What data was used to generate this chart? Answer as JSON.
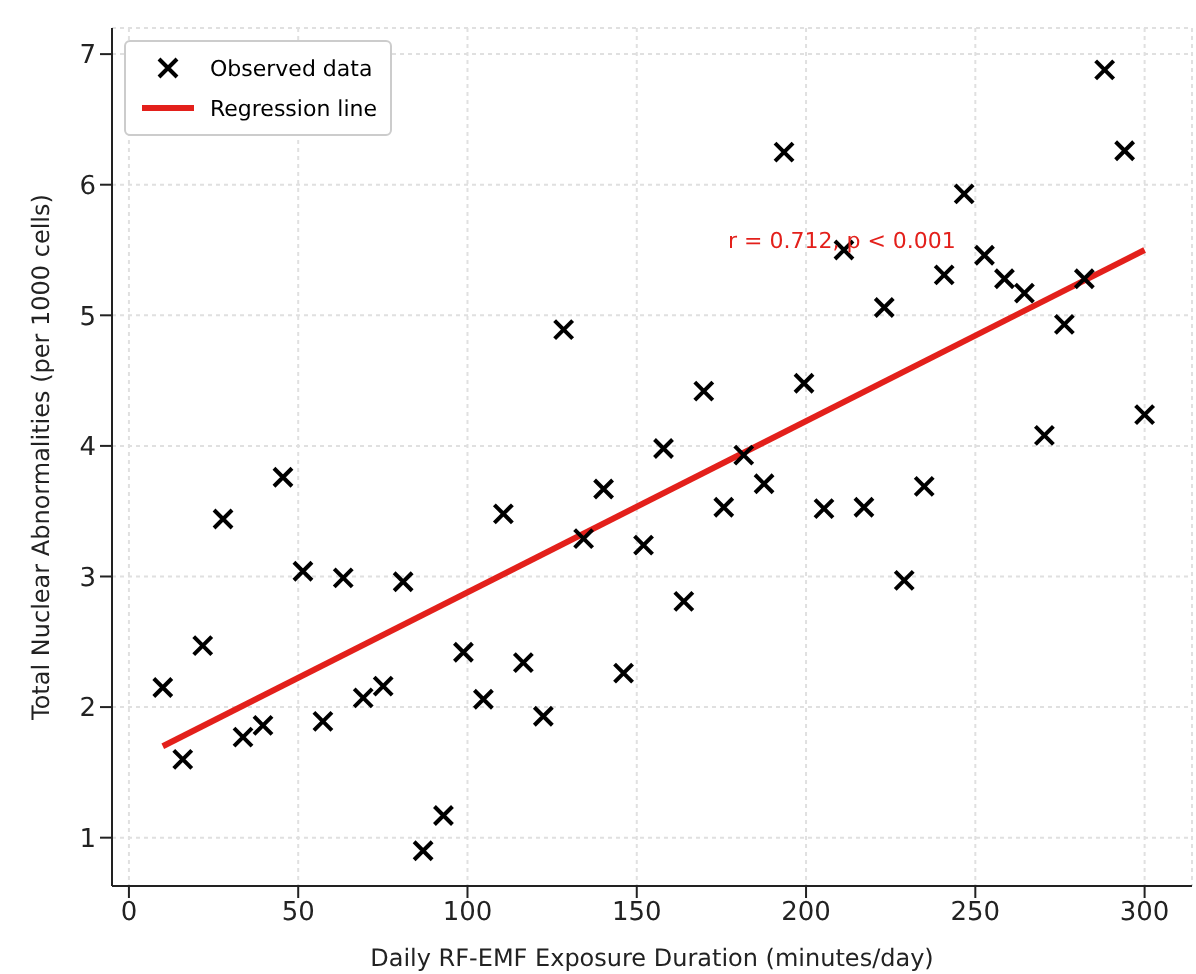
{
  "chart_data": {
    "type": "scatter",
    "xlabel": "Daily RF-EMF Exposure Duration (minutes/day)",
    "ylabel": "Total Nuclear Abnormalities (per 1000 cells)",
    "x": [
      10,
      15.9,
      21.8,
      27.8,
      33.7,
      39.6,
      45.5,
      51.4,
      57.3,
      63.3,
      69.2,
      75.1,
      81,
      86.9,
      92.9,
      98.8,
      104.7,
      110.6,
      116.5,
      122.4,
      128.4,
      134.3,
      140.2,
      146.1,
      152,
      157.9,
      163.9,
      169.8,
      175.7,
      181.6,
      187.6,
      193.5,
      199.4,
      205.3,
      211.2,
      217.1,
      223.1,
      229,
      234.9,
      240.8,
      246.7,
      252.7,
      258.6,
      264.5,
      270.4,
      276.3,
      282.2,
      288.2,
      294.1,
      300
    ],
    "series": [
      {
        "name": "Observed data",
        "color": "#000000",
        "marker": "cross",
        "values": [
          2.15,
          1.6,
          2.47,
          3.44,
          1.77,
          1.86,
          3.76,
          3.04,
          1.89,
          2.99,
          2.07,
          2.16,
          2.96,
          0.9,
          1.17,
          2.42,
          2.06,
          3.48,
          2.34,
          1.93,
          4.89,
          3.29,
          3.67,
          2.26,
          3.24,
          3.98,
          2.81,
          4.42,
          3.53,
          3.93,
          3.71,
          6.25,
          4.48,
          3.52,
          5.5,
          3.53,
          5.06,
          2.97,
          3.69,
          5.31,
          5.93,
          5.46,
          5.28,
          5.17,
          4.08,
          4.93,
          5.28,
          6.88,
          6.26,
          4.24
        ]
      },
      {
        "name": "Regression line",
        "type": "line",
        "color": "#e3201b",
        "x": [
          10,
          300
        ],
        "values": [
          1.7,
          5.5
        ],
        "line_style": "solid"
      }
    ],
    "annotations": [
      "r = 0.712, p < 0.001"
    ],
    "xlim": [
      -5,
      314
    ],
    "xticks": [
      0,
      50,
      100,
      150,
      200,
      250,
      300
    ],
    "ylim": [
      0.63,
      7.2
    ],
    "yticks": [
      1,
      2,
      3,
      4,
      5,
      6,
      7
    ],
    "grid": true,
    "legend": "top left"
  }
}
